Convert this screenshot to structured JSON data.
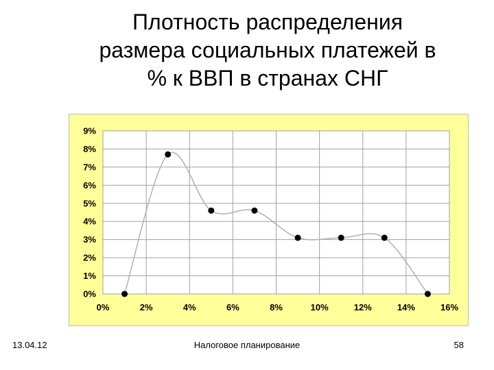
{
  "title_lines": [
    "Плотность распределения",
    "размера социальных платежей в",
    "% к ВВП в странах СНГ"
  ],
  "footer": {
    "date": "13.04.12",
    "center": "Налоговое планирование",
    "page": "58"
  },
  "colors": {
    "chart_background": "#ffff99",
    "plot_background": "#ffffff",
    "grid": "#a0a0a0",
    "line": "#b0b0b0",
    "marker": "#000000"
  },
  "chart_data": {
    "type": "line",
    "x": [
      1,
      3,
      5,
      7,
      9,
      11,
      13,
      15
    ],
    "values": [
      0,
      7.7,
      4.6,
      4.6,
      3.1,
      3.1,
      3.1,
      0
    ],
    "x_ticks": [
      "0%",
      "2%",
      "4%",
      "6%",
      "8%",
      "10%",
      "12%",
      "14%",
      "16%"
    ],
    "y_ticks": [
      "0%",
      "1%",
      "2%",
      "3%",
      "4%",
      "5%",
      "6%",
      "7%",
      "8%",
      "9%"
    ],
    "xlim": [
      0,
      16
    ],
    "ylim": [
      0,
      9
    ],
    "x_unit": "%",
    "y_unit": "%",
    "smooth": true,
    "markers": true,
    "grid": true,
    "title": "",
    "xlabel": "",
    "ylabel": ""
  }
}
